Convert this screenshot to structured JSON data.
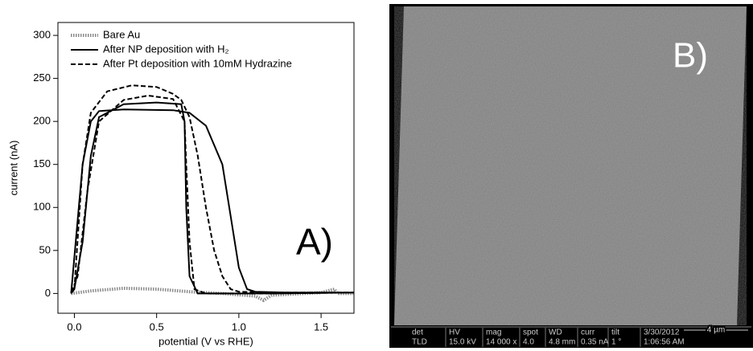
{
  "chart_data": {
    "type": "line",
    "xlabel": "potential (V vs RHE)",
    "ylabel": "current (nA)",
    "annotation": "A)",
    "xlim": [
      -0.1,
      1.7
    ],
    "ylim": [
      -23,
      315
    ],
    "xticks": [
      {
        "value": 0,
        "label": "0.0"
      },
      0.5,
      {
        "value": 1,
        "label": "1.0"
      },
      1.5
    ],
    "yticks": [
      0,
      50,
      100,
      150,
      200,
      250,
      300
    ],
    "legend": "upper left",
    "series": [
      {
        "name": "Bare Au",
        "color": "#8a8a8a",
        "line_style": "dotted",
        "x": [
          -0.02,
          0.1,
          0.3,
          0.5,
          0.7,
          0.9,
          1.1,
          1.15,
          1.2,
          1.5,
          1.58,
          1.6,
          1.7
        ],
        "values": [
          0,
          3,
          6,
          5,
          2,
          0,
          -3,
          -8,
          -2,
          1,
          5,
          0,
          0
        ]
      },
      {
        "name": "After NP deposition with H₂",
        "color": "#000000",
        "line_style": "solid",
        "x": [
          -0.02,
          0.05,
          0.1,
          0.15,
          0.3,
          0.6,
          0.7,
          0.8,
          0.9,
          0.95,
          1.0,
          1.05,
          1.1,
          1.3,
          1.7,
          1.2,
          0.75,
          0.7,
          0.68,
          0.67,
          0.65,
          0.5,
          0.3,
          0.15,
          0.1,
          0.05,
          0.0,
          -0.02
        ],
        "values": [
          0,
          150,
          200,
          212,
          214,
          213,
          210,
          195,
          150,
          90,
          30,
          5,
          2,
          1,
          1,
          0,
          0,
          20,
          100,
          200,
          220,
          222,
          220,
          205,
          160,
          60,
          5,
          0
        ]
      },
      {
        "name": "After Pt deposition with 10mM Hydrazine",
        "color": "#000000",
        "line_style": "dashed",
        "x": [
          0.0,
          0.05,
          0.1,
          0.2,
          0.35,
          0.5,
          0.6,
          0.65,
          0.7,
          0.75,
          0.8,
          0.85,
          0.9,
          0.95,
          1.0,
          1.2,
          1.7,
          1.2,
          0.8,
          0.73,
          0.7,
          0.68,
          0.67,
          0.6,
          0.45,
          0.3,
          0.15,
          0.08,
          0.02,
          -0.02
        ],
        "values": [
          5,
          150,
          210,
          235,
          242,
          240,
          232,
          225,
          205,
          160,
          100,
          50,
          20,
          5,
          2,
          1,
          1,
          0,
          0,
          5,
          60,
          150,
          200,
          226,
          230,
          225,
          200,
          120,
          20,
          0
        ]
      }
    ]
  },
  "sem_image": {
    "label": "B)",
    "info_bar": [
      {
        "header": "det",
        "value": "TLD"
      },
      {
        "header": "HV",
        "value": "15.0 kV"
      },
      {
        "header": "mag",
        "value": "14 000 x"
      },
      {
        "header": "spot",
        "value": "4.0"
      },
      {
        "header": "WD",
        "value": "4.8 mm"
      },
      {
        "header": "curr",
        "value": "0.35 nA"
      },
      {
        "header": "tilt",
        "value": "1 °"
      },
      {
        "header": "3/30/2012",
        "value": "1:06:56 AM"
      }
    ],
    "scale_bar": "4 µm"
  }
}
